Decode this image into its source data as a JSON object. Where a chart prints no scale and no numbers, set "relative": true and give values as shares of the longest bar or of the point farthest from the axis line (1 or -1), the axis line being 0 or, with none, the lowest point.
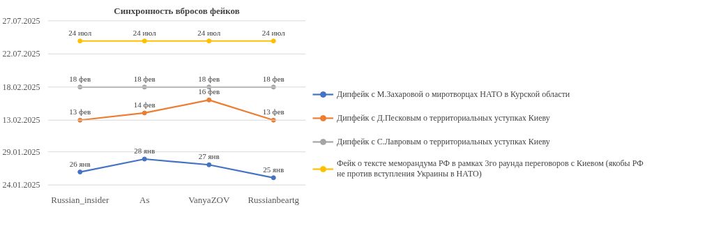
{
  "chart_data": {
    "type": "line",
    "title": "Синхронность вбросов фейков",
    "relative": true,
    "categories": [
      "Russian_insider",
      "As",
      "VanyaZOV",
      "Russianbeartg"
    ],
    "series": [
      {
        "name": "Дипфейк с М.Захаровой о миротворцах НАТО в Курской области",
        "color": "#4472c4",
        "values": [
          0.09,
          0.18,
          0.14,
          0.05
        ]
      },
      {
        "name": "Дипфейк с Д.Песковым о территориальных уступках Киеву",
        "color": "#ed7d31",
        "values": [
          0.45,
          0.5,
          0.59,
          0.45
        ]
      },
      {
        "name": "Дипфейк с С.Лавровым о территориальных уступках Киеву",
        "color": "#a5a5a5",
        "values": [
          0.68,
          0.68,
          0.68,
          0.68
        ]
      },
      {
        "name": "Фейк о тексте меморандума РФ в рамках 3го раунда переговоров с Киевом (якобы РФ не против вступления Украины в НАТО)",
        "color": "#ffc000",
        "values": [
          1,
          1,
          1,
          1
        ]
      }
    ],
    "annotations": [
      {
        "text": "26 янв",
        "x": "Russian_insider",
        "y": 0.09
      },
      {
        "text": "28 янв",
        "x": "As",
        "y": 0.18
      },
      {
        "text": "27 янв",
        "x": "VanyaZOV",
        "y": 0.14
      },
      {
        "text": "25 янв",
        "x": "Russianbeartg",
        "y": 0.05
      },
      {
        "text": "13 фев",
        "x": "Russian_insider",
        "y": 0.45
      },
      {
        "text": "14 фев",
        "x": "As",
        "y": 0.5
      },
      {
        "text": "16 фев",
        "x": "VanyaZOV",
        "y": 0.59
      },
      {
        "text": "13 фев",
        "x": "Russianbeartg",
        "y": 0.45
      },
      {
        "text": "18 фев",
        "x": "Russian_insider",
        "y": 0.68
      },
      {
        "text": "18 фев",
        "x": "As",
        "y": 0.68
      },
      {
        "text": "18 фев",
        "x": "VanyaZOV",
        "y": 0.68
      },
      {
        "text": "18 фев",
        "x": "Russianbeartg",
        "y": 0.68
      },
      {
        "text": "24 июл",
        "x": "Russian_insider",
        "y": 1
      },
      {
        "text": "24 июл",
        "x": "As",
        "y": 1
      },
      {
        "text": "24 июл",
        "x": "VanyaZOV",
        "y": 1
      },
      {
        "text": "24 июл",
        "x": "Russianbeartg",
        "y": 1
      }
    ],
    "ref_lines": [
      {
        "axis": "y",
        "value": 0,
        "label": "24.01.2025",
        "color": "#d9d9d9"
      },
      {
        "axis": "y",
        "value": 0.23,
        "label": "29.01.2025",
        "color": "#d9d9d9"
      },
      {
        "axis": "y",
        "value": 0.45,
        "label": "13.02.2025",
        "color": "#d9d9d9"
      },
      {
        "axis": "y",
        "value": 0.68,
        "label": "18.02.2025",
        "color": "#d9d9d9"
      },
      {
        "axis": "y",
        "value": 0.91,
        "label": "22.07.2025",
        "color": "#d9d9d9"
      },
      {
        "axis": "y",
        "value": 1.14,
        "label": "27.07.2025",
        "color": "#d9d9d9"
      }
    ],
    "legend": "right",
    "marker": "circle",
    "line_style": "solid"
  }
}
